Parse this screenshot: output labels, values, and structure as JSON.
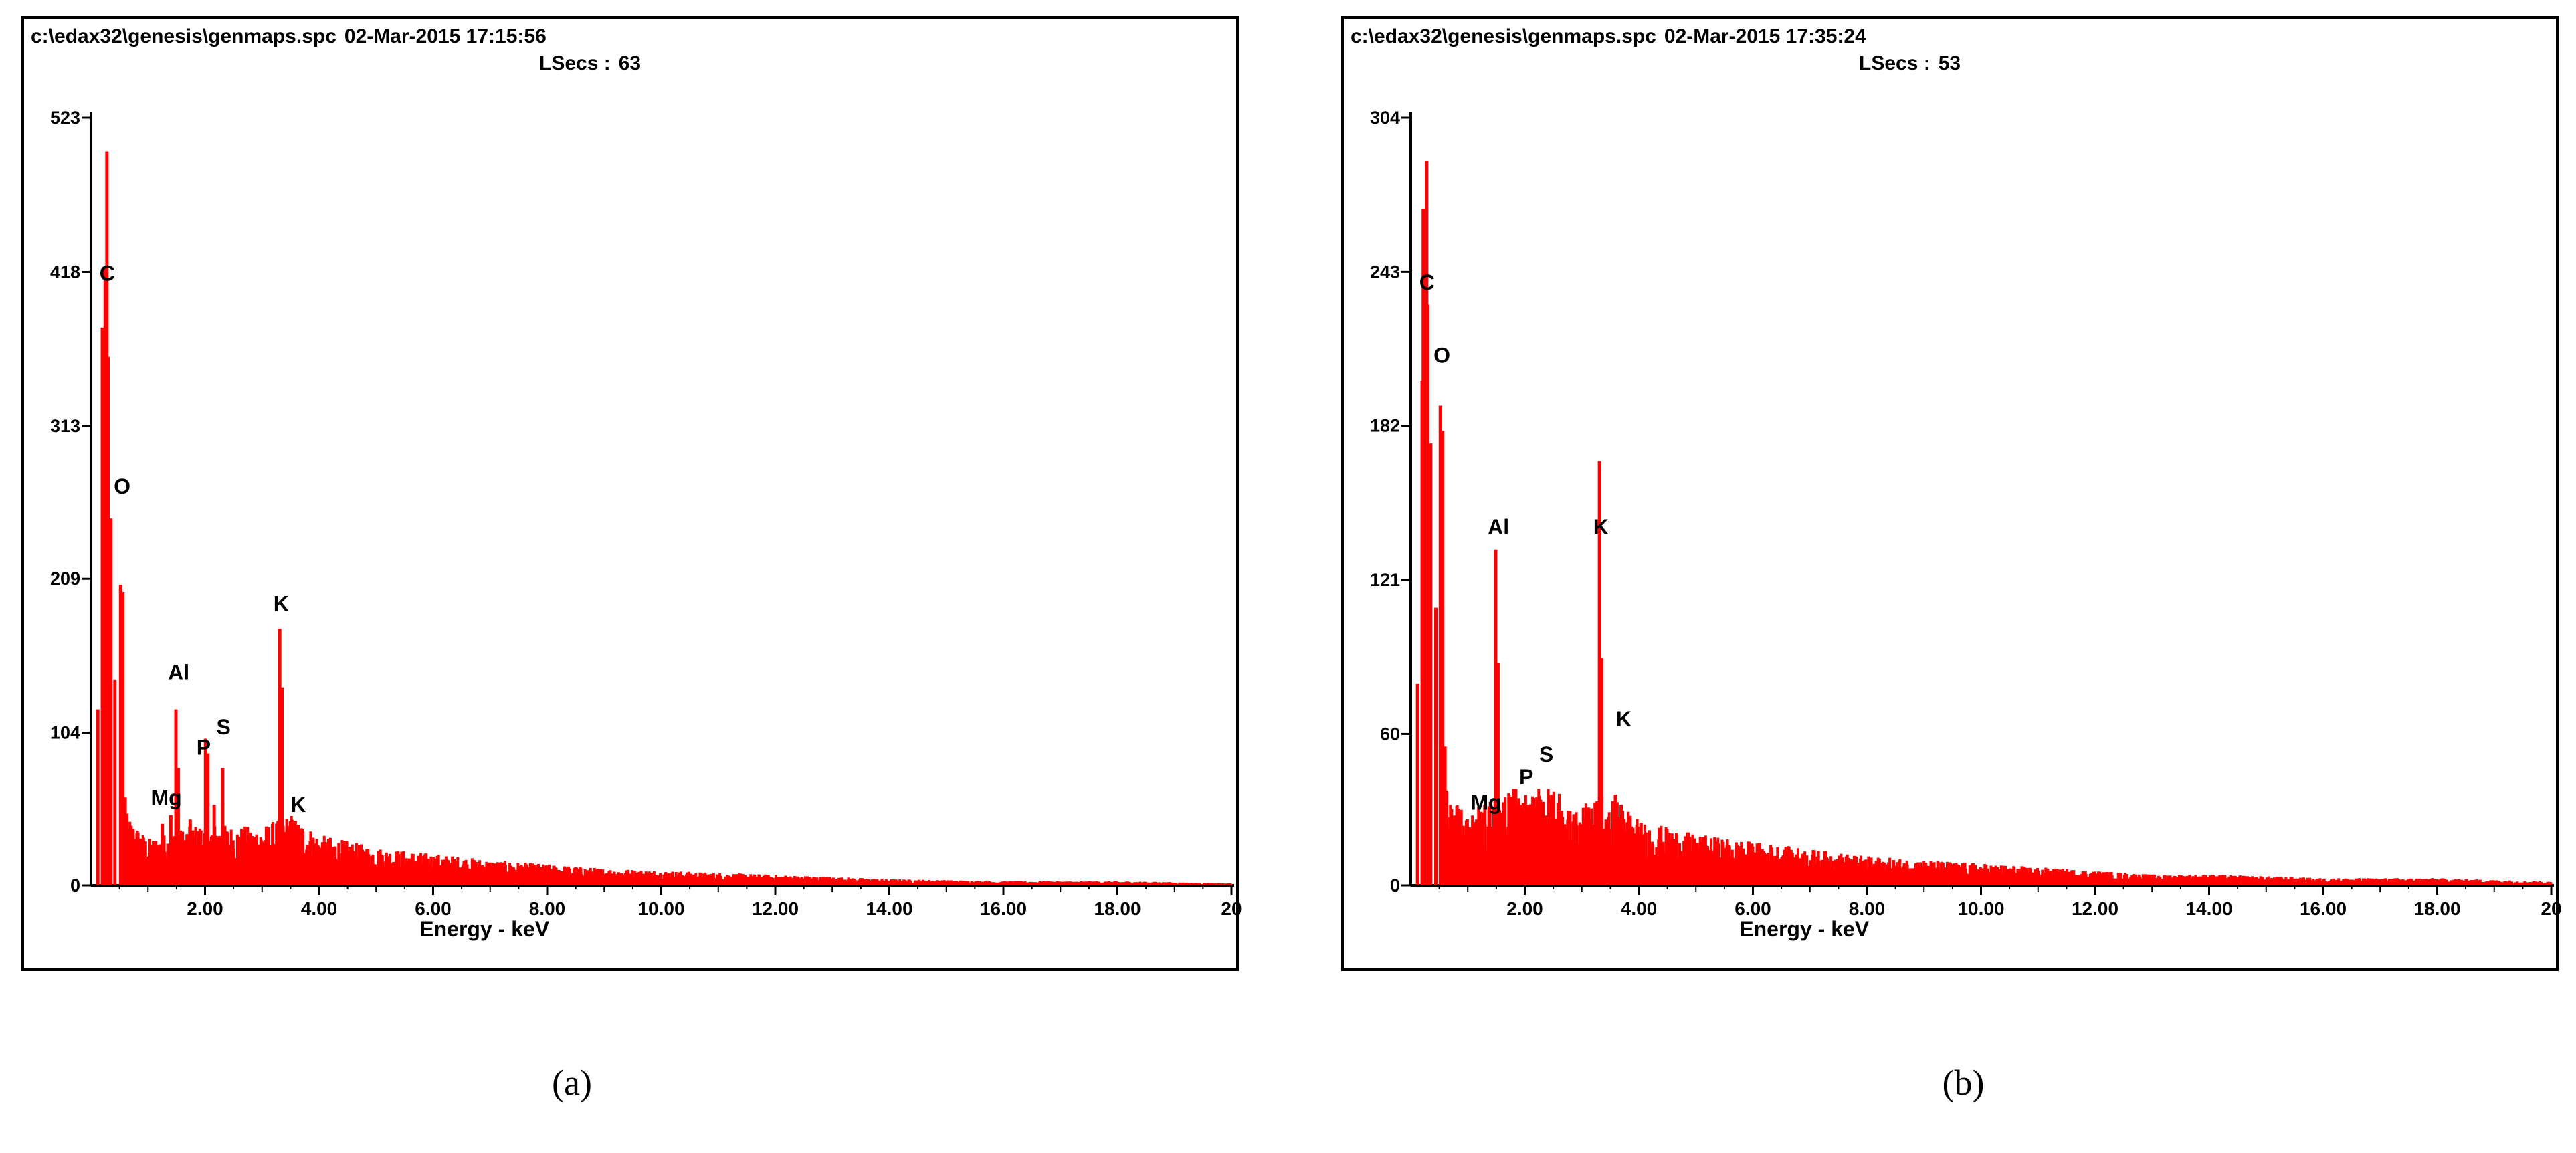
{
  "chart_data": [
    {
      "type": "bar",
      "panel": "a",
      "caption": "(a)",
      "header": {
        "path": "c:\\edax32\\genesis\\genmaps.spc",
        "timestamp": "02-Mar-2015 17:15:56",
        "lsecs_label": "LSecs :",
        "lsecs_value": "63"
      },
      "xlabel": "Energy - keV",
      "ylabel": "",
      "xlim": [
        0,
        20
      ],
      "ylim": [
        0,
        523
      ],
      "xticks": [
        2,
        4,
        6,
        8,
        10,
        12,
        14,
        16,
        18,
        20
      ],
      "xtick_labels": [
        "2.00",
        "4.00",
        "6.00",
        "8.00",
        "10.00",
        "12.00",
        "14.00",
        "16.00",
        "18.00",
        "20"
      ],
      "yticks": [
        0,
        104,
        209,
        313,
        418,
        523
      ],
      "ytick_labels": [
        "0",
        "104",
        "209",
        "313",
        "418",
        "523"
      ],
      "color": "#ff0000",
      "peaks": [
        {
          "kev": 0.12,
          "counts": 120
        },
        {
          "kev": 0.2,
          "counts": 380
        },
        {
          "kev": 0.25,
          "counts": 420
        },
        {
          "kev": 0.28,
          "counts": 500
        },
        {
          "kev": 0.3,
          "counts": 360
        },
        {
          "kev": 0.35,
          "counts": 250
        },
        {
          "kev": 0.42,
          "counts": 140
        },
        {
          "kev": 0.52,
          "counts": 205
        },
        {
          "kev": 0.56,
          "counts": 200
        },
        {
          "kev": 0.6,
          "counts": 60
        },
        {
          "kev": 1.25,
          "counts": 42
        },
        {
          "kev": 1.4,
          "counts": 48
        },
        {
          "kev": 1.49,
          "counts": 120
        },
        {
          "kev": 1.53,
          "counts": 80
        },
        {
          "kev": 1.74,
          "counts": 45
        },
        {
          "kev": 2.01,
          "counts": 100
        },
        {
          "kev": 2.05,
          "counts": 90
        },
        {
          "kev": 2.16,
          "counts": 55
        },
        {
          "kev": 2.31,
          "counts": 80
        },
        {
          "kev": 2.62,
          "counts": 32
        },
        {
          "kev": 3.31,
          "counts": 175
        },
        {
          "kev": 3.35,
          "counts": 135
        },
        {
          "kev": 3.59,
          "counts": 38
        },
        {
          "kev": 3.69,
          "counts": 36
        }
      ],
      "baseline": [
        [
          0.6,
          35
        ],
        [
          1.0,
          22
        ],
        [
          1.5,
          26
        ],
        [
          2.0,
          30
        ],
        [
          2.5,
          28
        ],
        [
          3.0,
          28
        ],
        [
          3.5,
          34
        ],
        [
          4.0,
          24
        ],
        [
          5.0,
          18
        ],
        [
          6.0,
          15
        ],
        [
          7.0,
          12
        ],
        [
          8.0,
          10
        ],
        [
          9.0,
          8
        ],
        [
          10.0,
          7
        ],
        [
          11.0,
          6
        ],
        [
          12.0,
          5
        ],
        [
          13.0,
          4
        ],
        [
          14.0,
          3
        ],
        [
          16.0,
          2
        ],
        [
          18.0,
          2
        ],
        [
          20.0,
          1
        ]
      ],
      "annotations": [
        {
          "text": "C",
          "kev": 0.15,
          "counts": 412
        },
        {
          "text": "O",
          "kev": 0.4,
          "counts": 267
        },
        {
          "text": "Mg",
          "kev": 1.05,
          "counts": 55
        },
        {
          "text": "Al",
          "kev": 1.35,
          "counts": 140
        },
        {
          "text": "P",
          "kev": 1.85,
          "counts": 89
        },
        {
          "text": "S",
          "kev": 2.2,
          "counts": 103
        },
        {
          "text": "K",
          "kev": 3.2,
          "counts": 187
        },
        {
          "text": "K",
          "kev": 3.5,
          "counts": 50
        }
      ]
    },
    {
      "type": "bar",
      "panel": "b",
      "caption": "(b)",
      "header": {
        "path": "c:\\edax32\\genesis\\genmaps.spc",
        "timestamp": "02-Mar-2015 17:35:24",
        "lsecs_label": "LSecs :",
        "lsecs_value": "53"
      },
      "xlabel": "Energy - keV",
      "ylabel": "",
      "xlim": [
        0,
        20
      ],
      "ylim": [
        0,
        304
      ],
      "xticks": [
        2,
        4,
        6,
        8,
        10,
        12,
        14,
        16,
        18,
        20
      ],
      "xtick_labels": [
        "2.00",
        "4.00",
        "6.00",
        "8.00",
        "10.00",
        "12.00",
        "14.00",
        "16.00",
        "18.00",
        "20"
      ],
      "yticks": [
        0,
        60,
        121,
        182,
        243,
        304
      ],
      "ytick_labels": [
        "0",
        "60",
        "121",
        "182",
        "243",
        "304"
      ],
      "color": "#ff0000",
      "peaks": [
        {
          "kev": 0.12,
          "counts": 80
        },
        {
          "kev": 0.2,
          "counts": 200
        },
        {
          "kev": 0.22,
          "counts": 268
        },
        {
          "kev": 0.28,
          "counts": 287
        },
        {
          "kev": 0.3,
          "counts": 230
        },
        {
          "kev": 0.35,
          "counts": 175
        },
        {
          "kev": 0.44,
          "counts": 110
        },
        {
          "kev": 0.52,
          "counts": 190
        },
        {
          "kev": 0.56,
          "counts": 180
        },
        {
          "kev": 0.6,
          "counts": 55
        },
        {
          "kev": 1.3,
          "counts": 32
        },
        {
          "kev": 1.49,
          "counts": 133
        },
        {
          "kev": 1.53,
          "counts": 88
        },
        {
          "kev": 1.74,
          "counts": 34
        },
        {
          "kev": 2.05,
          "counts": 32
        },
        {
          "kev": 2.3,
          "counts": 33
        },
        {
          "kev": 3.31,
          "counts": 168
        },
        {
          "kev": 3.35,
          "counts": 90
        },
        {
          "kev": 3.59,
          "counts": 36
        },
        {
          "kev": 3.69,
          "counts": 32
        }
      ],
      "baseline": [
        [
          0.6,
          30
        ],
        [
          1.0,
          20
        ],
        [
          1.5,
          25
        ],
        [
          2.0,
          28
        ],
        [
          2.5,
          26
        ],
        [
          3.0,
          22
        ],
        [
          3.5,
          25
        ],
        [
          4.0,
          18
        ],
        [
          5.0,
          14
        ],
        [
          6.0,
          12
        ],
        [
          7.0,
          10
        ],
        [
          8.0,
          8
        ],
        [
          9.0,
          7
        ],
        [
          10.0,
          6
        ],
        [
          11.0,
          5
        ],
        [
          12.0,
          4
        ],
        [
          13.0,
          3
        ],
        [
          14.0,
          3
        ],
        [
          16.0,
          2
        ],
        [
          18.0,
          2
        ],
        [
          20.0,
          1
        ]
      ],
      "annotations": [
        {
          "text": "C",
          "kev": 0.15,
          "counts": 236
        },
        {
          "text": "O",
          "kev": 0.4,
          "counts": 207
        },
        {
          "text": "Mg",
          "kev": 1.05,
          "counts": 30
        },
        {
          "text": "Al",
          "kev": 1.35,
          "counts": 139
        },
        {
          "text": "P",
          "kev": 1.9,
          "counts": 40
        },
        {
          "text": "S",
          "kev": 2.25,
          "counts": 49
        },
        {
          "text": "K",
          "kev": 3.2,
          "counts": 139
        },
        {
          "text": "K",
          "kev": 3.6,
          "counts": 63
        }
      ]
    }
  ]
}
